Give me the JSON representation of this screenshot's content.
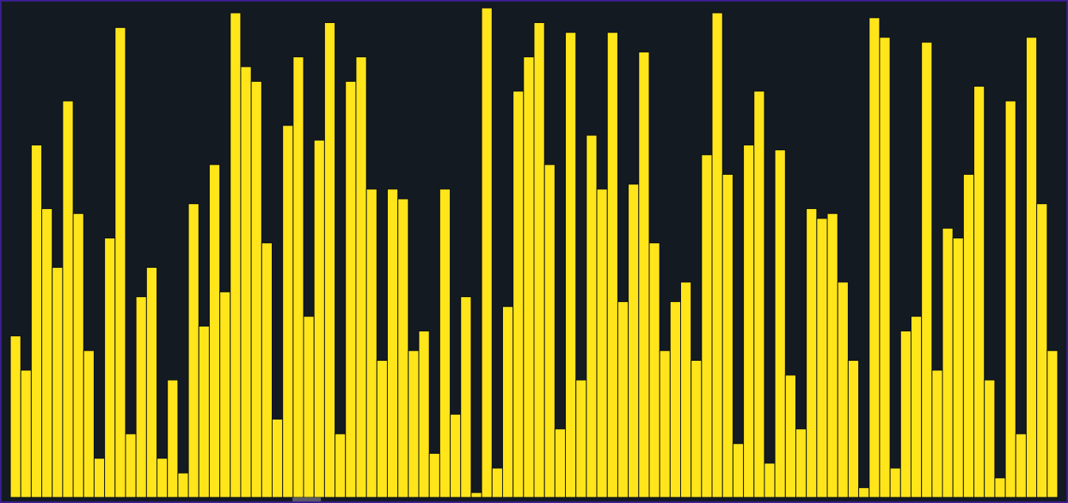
{
  "colors": {
    "background": "#131a22",
    "bar_fill": "#ffe51a",
    "bar_stroke": "#0b0f14",
    "frame_border": "#3b1f8f",
    "scroll_thumb": "#5b5b66"
  },
  "chart_data": {
    "type": "bar",
    "title": "",
    "xlabel": "",
    "ylabel": "",
    "ylim": [
      0,
      100
    ],
    "grid": false,
    "values": [
      33,
      26,
      72,
      59,
      47,
      81,
      58,
      30,
      8,
      53,
      96,
      13,
      41,
      47,
      8,
      24,
      5,
      60,
      35,
      68,
      42,
      99,
      88,
      85,
      52,
      16,
      76,
      90,
      37,
      73,
      97,
      13,
      85,
      90,
      63,
      28,
      63,
      61,
      30,
      34,
      9,
      63,
      17,
      41,
      1,
      100,
      6,
      39,
      83,
      90,
      97,
      68,
      14,
      95,
      24,
      74,
      63,
      95,
      40,
      64,
      91,
      52,
      30,
      40,
      44,
      28,
      70,
      99,
      66,
      11,
      72,
      83,
      7,
      71,
      25,
      14,
      59,
      57,
      58,
      44,
      28,
      2,
      98,
      94,
      6,
      34,
      37,
      93,
      26,
      55,
      53,
      66,
      84,
      24,
      4,
      81,
      13,
      94,
      60,
      30
    ]
  }
}
